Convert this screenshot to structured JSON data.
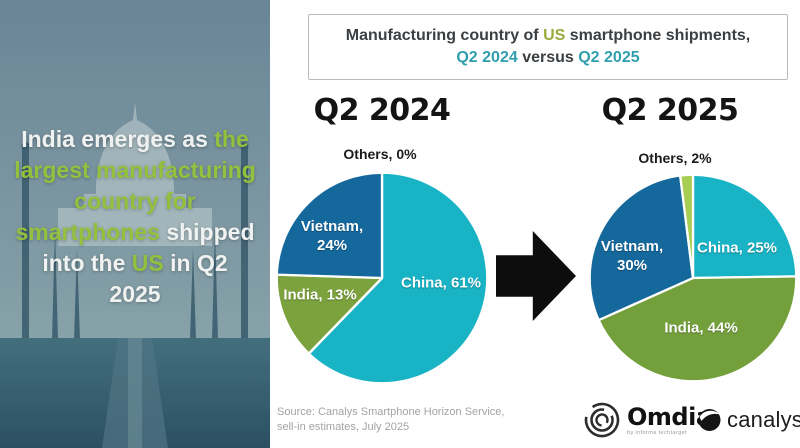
{
  "header": {
    "line1_pre": "Manufacturing country of ",
    "line1_highlight": "US",
    "line1_post": " smartphone shipments,",
    "line2_q_left": "Q2 2024",
    "line2_versus": " versus ",
    "line2_q_right": "Q2 2025"
  },
  "left_panel": {
    "headline_segments": [
      {
        "t": "India emerges as ",
        "c": "white"
      },
      {
        "t": "the",
        "c": "green",
        "br": true
      },
      {
        "t": "largest manufacturing",
        "c": "green",
        "br": true
      },
      {
        "t": "country for",
        "c": "green",
        "br": true
      },
      {
        "t": "smartphones",
        "c": "green"
      },
      {
        "t": " shipped",
        "c": "white",
        "br": true
      },
      {
        "t": "into the ",
        "c": "white"
      },
      {
        "t": "US",
        "c": "green"
      },
      {
        "t": " in Q2",
        "c": "white",
        "br": true
      },
      {
        "t": "2025",
        "c": "white"
      }
    ]
  },
  "chart_data": [
    {
      "type": "pie",
      "title": "Q2 2024",
      "categories": [
        "China",
        "India",
        "Vietnam",
        "Others"
      ],
      "values": [
        61,
        13,
        24,
        0
      ],
      "unit": "%",
      "start": "top",
      "direction": "clockwise",
      "slice_colors": [
        "#19b3c6",
        "#7ba23c",
        "#15689c",
        "#a9cd52"
      ],
      "labels": {
        "others": "Others, 0%",
        "vietnam_1": "Vietnam,",
        "vietnam_2": "24%",
        "india": "India, 13%",
        "china": "China, 61%"
      }
    },
    {
      "type": "pie",
      "title": "Q2 2025",
      "categories": [
        "China",
        "India",
        "Vietnam",
        "Others"
      ],
      "values": [
        25,
        44,
        30,
        2
      ],
      "unit": "%",
      "start": "top",
      "direction": "clockwise",
      "slice_colors": [
        "#19b3c6",
        "#74a03c",
        "#15689c",
        "#a9cd52"
      ],
      "labels": {
        "others": "Others, 2%",
        "vietnam_1": "Vietnam,",
        "vietnam_2": "30%",
        "china": "China, 25%",
        "india": "India, 44%"
      }
    }
  ],
  "footer": {
    "source_line1": "Source: Canalys Smartphone Horizon Service,",
    "source_line2": "sell-in estimates, July 2025",
    "omdia_name": "Omdia",
    "omdia_tagline": "by informa techtarget",
    "canalys_name": "canalys"
  },
  "colors": {
    "china_teal": "#19b3c6",
    "india_green_2024": "#7ba23c",
    "india_green_2025": "#74a03c",
    "vietnam_blue": "#15689c",
    "others_lime": "#a9cd52",
    "headline_green": "#93c13d",
    "header_us_green": "#9aaa3c",
    "header_teal": "#2f9fae",
    "source_gray": "#a3a3a3"
  }
}
